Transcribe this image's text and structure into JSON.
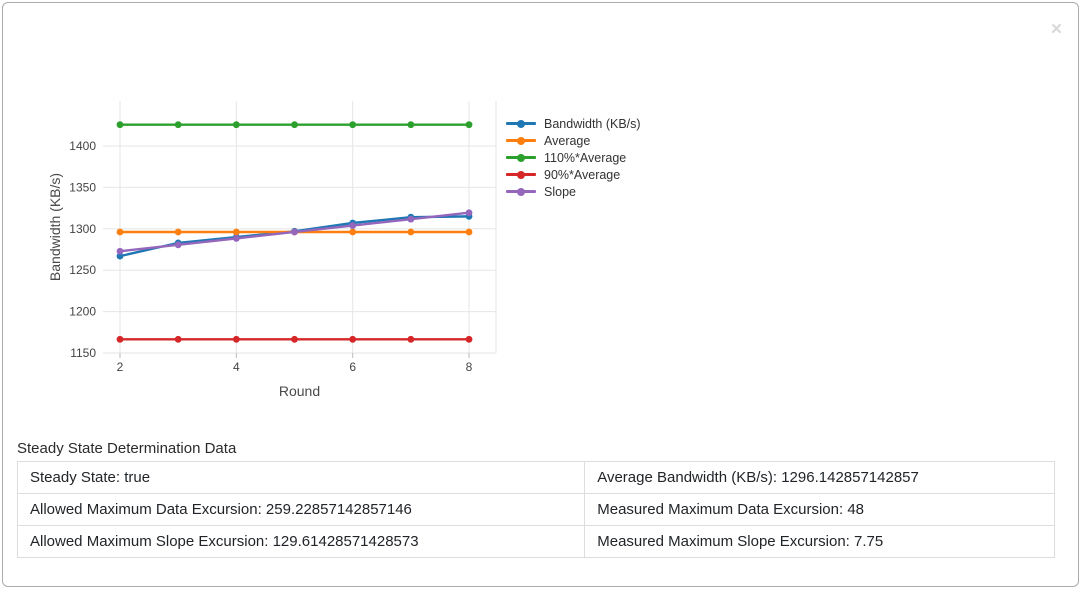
{
  "modal": {
    "close_label": "×"
  },
  "chart_data": {
    "type": "line",
    "x": [
      2,
      3,
      4,
      5,
      6,
      7,
      8
    ],
    "series": [
      {
        "name": "Bandwidth (KB/s)",
        "color": "#1f77b4",
        "values": [
          1267,
          1283,
          1290,
          1297,
          1307,
          1314,
          1315
        ]
      },
      {
        "name": "Average",
        "color": "#ff7f0e",
        "values": [
          1296.142857142857,
          1296.142857142857,
          1296.142857142857,
          1296.142857142857,
          1296.142857142857,
          1296.142857142857,
          1296.142857142857
        ]
      },
      {
        "name": "110%*Average",
        "color": "#2ca02c",
        "values": [
          1425.757142857143,
          1425.757142857143,
          1425.757142857143,
          1425.757142857143,
          1425.757142857143,
          1425.757142857143,
          1425.757142857143
        ]
      },
      {
        "name": "90%*Average",
        "color": "#d62728",
        "values": [
          1166.528571428571,
          1166.528571428571,
          1166.528571428571,
          1166.528571428571,
          1166.528571428571,
          1166.528571428571,
          1166.528571428571
        ]
      },
      {
        "name": "Slope",
        "color": "#9467bd",
        "values": [
          1272.892857142857,
          1280.642857142857,
          1288.392857142857,
          1296.142857142857,
          1303.892857142857,
          1311.642857142857,
          1319.392857142857
        ]
      }
    ],
    "title": "",
    "xlabel": "Round",
    "ylabel": "Bandwidth (KB/s)",
    "xticks": [
      2,
      4,
      6,
      8
    ],
    "yticks": [
      1150,
      1200,
      1250,
      1300,
      1350,
      1400
    ],
    "xlim": [
      1.7,
      8.45
    ],
    "ylim": [
      1150,
      1458
    ],
    "grid": true,
    "legend_position": "right"
  },
  "table": {
    "title": "Steady State Determination Data",
    "rows": [
      [
        "Steady State: true",
        "Average Bandwidth (KB/s): 1296.142857142857"
      ],
      [
        "Allowed Maximum Data Excursion: 259.22857142857146",
        "Measured Maximum Data Excursion: 48"
      ],
      [
        "Allowed Maximum Slope Excursion: 129.61428571428573",
        "Measured Maximum Slope Excursion: 7.75"
      ]
    ]
  }
}
